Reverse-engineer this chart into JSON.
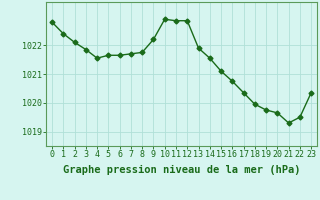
{
  "x": [
    0,
    1,
    2,
    3,
    4,
    5,
    6,
    7,
    8,
    9,
    10,
    11,
    12,
    13,
    14,
    15,
    16,
    17,
    18,
    19,
    20,
    21,
    22,
    23
  ],
  "y": [
    1022.8,
    1022.4,
    1022.1,
    1021.85,
    1021.55,
    1021.65,
    1021.65,
    1021.7,
    1021.75,
    1022.2,
    1022.9,
    1022.85,
    1022.85,
    1021.9,
    1021.55,
    1021.1,
    1020.75,
    1020.35,
    1019.95,
    1019.75,
    1019.65,
    1019.3,
    1019.5,
    1020.35
  ],
  "ylim": [
    1018.5,
    1023.5
  ],
  "yticks": [
    1019,
    1020,
    1021,
    1022
  ],
  "xticks": [
    0,
    1,
    2,
    3,
    4,
    5,
    6,
    7,
    8,
    9,
    10,
    11,
    12,
    13,
    14,
    15,
    16,
    17,
    18,
    19,
    20,
    21,
    22,
    23
  ],
  "line_color": "#1a6b1a",
  "marker": "D",
  "marker_size": 2.5,
  "bg_color": "#d6f5f0",
  "grid_color": "#b0e0d8",
  "xlabel": "Graphe pression niveau de la mer (hPa)",
  "xlabel_fontsize": 7.5,
  "tick_fontsize": 6,
  "line_width": 1.0,
  "border_color": "#5a9a5a"
}
